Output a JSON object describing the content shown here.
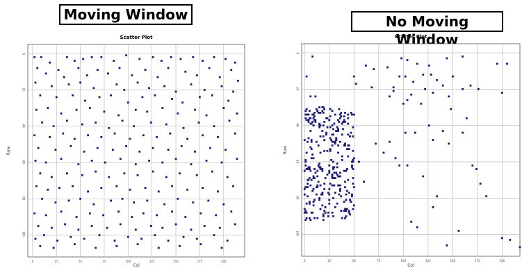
{
  "panels": [
    {
      "heading": "Moving Window",
      "chart_data": {
        "type": "scatter",
        "title": "Scatter Plot",
        "xlabel": "Col",
        "ylabel": "Row",
        "xlim": [
          -5,
          222
        ],
        "ylim": [
          -5,
          112
        ],
        "x_ticks": [
          0,
          25,
          50,
          75,
          100,
          125,
          150,
          175,
          200
        ],
        "y_ticks": [
          0,
          20,
          40,
          60,
          80,
          100
        ],
        "y_inverted": true,
        "grid": true,
        "point_color": "#1a1a6e",
        "points": [
          [
            2,
            2
          ],
          [
            9,
            2
          ],
          [
            18,
            5
          ],
          [
            36,
            2
          ],
          [
            44,
            4
          ],
          [
            53,
            3
          ],
          [
            62,
            2
          ],
          [
            72,
            2
          ],
          [
            85,
            4
          ],
          [
            98,
            1
          ],
          [
            112,
            3
          ],
          [
            126,
            2
          ],
          [
            135,
            4
          ],
          [
            145,
            2
          ],
          [
            155,
            3
          ],
          [
            168,
            2
          ],
          [
            178,
            4
          ],
          [
            190,
            2
          ],
          [
            202,
            3
          ],
          [
            212,
            5
          ],
          [
            5,
            8
          ],
          [
            14,
            11
          ],
          [
            27,
            9
          ],
          [
            33,
            13
          ],
          [
            48,
            8
          ],
          [
            57,
            12
          ],
          [
            68,
            9
          ],
          [
            79,
            11
          ],
          [
            91,
            8
          ],
          [
            104,
            12
          ],
          [
            118,
            9
          ],
          [
            131,
            13
          ],
          [
            142,
            8
          ],
          [
            160,
            10
          ],
          [
            172,
            12
          ],
          [
            185,
            8
          ],
          [
            196,
            13
          ],
          [
            208,
            9
          ],
          [
            215,
            15
          ],
          [
            3,
            16
          ],
          [
            20,
            18
          ],
          [
            38,
            17
          ],
          [
            50,
            16
          ],
          [
            64,
            19
          ],
          [
            88,
            17
          ],
          [
            96,
            20
          ],
          [
            110,
            16
          ],
          [
            122,
            19
          ],
          [
            138,
            18
          ],
          [
            150,
            21
          ],
          [
            166,
            17
          ],
          [
            180,
            20
          ],
          [
            198,
            18
          ],
          [
            210,
            21
          ],
          [
            8,
            23
          ],
          [
            25,
            24
          ],
          [
            42,
            23
          ],
          [
            55,
            26
          ],
          [
            70,
            24
          ],
          [
            82,
            23
          ],
          [
            100,
            27
          ],
          [
            115,
            24
          ],
          [
            128,
            23
          ],
          [
            146,
            25
          ],
          [
            157,
            27
          ],
          [
            175,
            24
          ],
          [
            188,
            23
          ],
          [
            205,
            26
          ],
          [
            4,
            31
          ],
          [
            16,
            30
          ],
          [
            30,
            33
          ],
          [
            46,
            31
          ],
          [
            60,
            30
          ],
          [
            75,
            32
          ],
          [
            90,
            34
          ],
          [
            108,
            31
          ],
          [
            120,
            32
          ],
          [
            136,
            30
          ],
          [
            152,
            33
          ],
          [
            170,
            31
          ],
          [
            182,
            34
          ],
          [
            200,
            30
          ],
          [
            214,
            33
          ],
          [
            10,
            38
          ],
          [
            22,
            40
          ],
          [
            36,
            37
          ],
          [
            52,
            39
          ],
          [
            66,
            38
          ],
          [
            80,
            41
          ],
          [
            94,
            37
          ],
          [
            106,
            40
          ],
          [
            124,
            38
          ],
          [
            140,
            39
          ],
          [
            158,
            41
          ],
          [
            174,
            38
          ],
          [
            190,
            40
          ],
          [
            206,
            37
          ],
          [
            2,
            45
          ],
          [
            18,
            46
          ],
          [
            32,
            44
          ],
          [
            44,
            47
          ],
          [
            58,
            45
          ],
          [
            72,
            46
          ],
          [
            86,
            44
          ],
          [
            102,
            47
          ],
          [
            116,
            45
          ],
          [
            130,
            46
          ],
          [
            144,
            44
          ],
          [
            162,
            47
          ],
          [
            178,
            45
          ],
          [
            194,
            46
          ],
          [
            212,
            44
          ],
          [
            6,
            52
          ],
          [
            24,
            53
          ],
          [
            40,
            51
          ],
          [
            54,
            54
          ],
          [
            68,
            52
          ],
          [
            84,
            53
          ],
          [
            98,
            51
          ],
          [
            112,
            54
          ],
          [
            126,
            52
          ],
          [
            142,
            53
          ],
          [
            156,
            51
          ],
          [
            170,
            54
          ],
          [
            186,
            52
          ],
          [
            202,
            53
          ],
          [
            3,
            59
          ],
          [
            14,
            60
          ],
          [
            30,
            58
          ],
          [
            48,
            61
          ],
          [
            62,
            59
          ],
          [
            76,
            60
          ],
          [
            92,
            58
          ],
          [
            108,
            61
          ],
          [
            122,
            59
          ],
          [
            136,
            60
          ],
          [
            150,
            58
          ],
          [
            166,
            61
          ],
          [
            182,
            59
          ],
          [
            198,
            60
          ],
          [
            214,
            58
          ],
          [
            8,
            66
          ],
          [
            20,
            68
          ],
          [
            36,
            66
          ],
          [
            52,
            67
          ],
          [
            66,
            65
          ],
          [
            80,
            68
          ],
          [
            96,
            66
          ],
          [
            110,
            67
          ],
          [
            126,
            65
          ],
          [
            140,
            68
          ],
          [
            154,
            66
          ],
          [
            172,
            67
          ],
          [
            188,
            65
          ],
          [
            204,
            68
          ],
          [
            4,
            73
          ],
          [
            16,
            75
          ],
          [
            28,
            74
          ],
          [
            42,
            73
          ],
          [
            58,
            76
          ],
          [
            72,
            74
          ],
          [
            88,
            73
          ],
          [
            102,
            75
          ],
          [
            118,
            74
          ],
          [
            132,
            76
          ],
          [
            146,
            73
          ],
          [
            162,
            75
          ],
          [
            178,
            74
          ],
          [
            194,
            76
          ],
          [
            210,
            73
          ],
          [
            10,
            80
          ],
          [
            24,
            82
          ],
          [
            38,
            81
          ],
          [
            50,
            80
          ],
          [
            64,
            83
          ],
          [
            82,
            81
          ],
          [
            94,
            80
          ],
          [
            106,
            82
          ],
          [
            120,
            81
          ],
          [
            138,
            83
          ],
          [
            152,
            80
          ],
          [
            168,
            82
          ],
          [
            184,
            81
          ],
          [
            200,
            83
          ],
          [
            2,
            88
          ],
          [
            14,
            89
          ],
          [
            30,
            87
          ],
          [
            46,
            90
          ],
          [
            60,
            88
          ],
          [
            74,
            89
          ],
          [
            90,
            87
          ],
          [
            104,
            90
          ],
          [
            116,
            88
          ],
          [
            130,
            89
          ],
          [
            146,
            87
          ],
          [
            160,
            90
          ],
          [
            176,
            88
          ],
          [
            192,
            89
          ],
          [
            208,
            87
          ],
          [
            6,
            95
          ],
          [
            20,
            96
          ],
          [
            34,
            94
          ],
          [
            48,
            97
          ],
          [
            62,
            95
          ],
          [
            78,
            96
          ],
          [
            92,
            94
          ],
          [
            108,
            97
          ],
          [
            124,
            95
          ],
          [
            136,
            96
          ],
          [
            150,
            94
          ],
          [
            166,
            97
          ],
          [
            180,
            95
          ],
          [
            196,
            96
          ],
          [
            212,
            94
          ],
          [
            3,
            102
          ],
          [
            12,
            100
          ],
          [
            26,
            103
          ],
          [
            40,
            101
          ],
          [
            54,
            102
          ],
          [
            70,
            100
          ],
          [
            86,
            103
          ],
          [
            100,
            101
          ],
          [
            114,
            102
          ],
          [
            128,
            100
          ],
          [
            142,
            103
          ],
          [
            158,
            101
          ],
          [
            172,
            102
          ],
          [
            190,
            100
          ],
          [
            204,
            103
          ],
          [
            8,
            106
          ],
          [
            22,
            107
          ],
          [
            44,
            105
          ],
          [
            66,
            107
          ],
          [
            88,
            106
          ],
          [
            110,
            105
          ],
          [
            132,
            107
          ],
          [
            154,
            106
          ],
          [
            176,
            105
          ],
          [
            198,
            107
          ]
        ]
      }
    },
    {
      "heading": "No Moving Window",
      "chart_data": {
        "type": "scatter",
        "title": "Scatter Plot",
        "xlabel": "Col",
        "ylabel": "Row",
        "xlim": [
          -3,
          218
        ],
        "ylim": [
          -5,
          112
        ],
        "x_ticks": [
          0,
          25,
          50,
          75,
          100,
          125,
          150,
          175,
          200
        ],
        "y_ticks": [
          0,
          20,
          40,
          60,
          80,
          100
        ],
        "y_inverted": true,
        "grid": true,
        "point_color": "#1a1a6e",
        "points": [
          [
            8,
            2
          ],
          [
            2,
            13
          ],
          [
            6,
            24
          ],
          [
            11,
            24
          ],
          [
            3,
            34
          ],
          [
            14,
            33
          ],
          [
            20,
            31
          ],
          [
            26,
            31
          ],
          [
            31,
            34
          ],
          [
            37,
            35
          ],
          [
            62,
            7
          ],
          [
            70,
            9
          ],
          [
            84,
            8
          ],
          [
            98,
            3
          ],
          [
            104,
            4
          ],
          [
            114,
            6
          ],
          [
            126,
            7
          ],
          [
            144,
            3
          ],
          [
            160,
            2
          ],
          [
            195,
            6
          ],
          [
            205,
            6
          ],
          [
            50,
            13
          ],
          [
            52,
            17
          ],
          [
            68,
            19
          ],
          [
            90,
            19
          ],
          [
            96,
            13
          ],
          [
            102,
            13
          ],
          [
            110,
            16
          ],
          [
            120,
            12
          ],
          [
            128,
            12
          ],
          [
            134,
            15
          ],
          [
            150,
            13
          ],
          [
            86,
            24
          ],
          [
            90,
            21
          ],
          [
            108,
            23
          ],
          [
            122,
            20
          ],
          [
            130,
            22
          ],
          [
            140,
            18
          ],
          [
            146,
            24
          ],
          [
            160,
            20
          ],
          [
            168,
            18
          ],
          [
            176,
            20
          ],
          [
            200,
            22
          ],
          [
            100,
            28
          ],
          [
            104,
            26
          ],
          [
            118,
            28
          ],
          [
            148,
            31
          ],
          [
            164,
            36
          ],
          [
            102,
            44
          ],
          [
            112,
            44
          ],
          [
            126,
            40
          ],
          [
            130,
            48
          ],
          [
            140,
            43
          ],
          [
            146,
            50
          ],
          [
            160,
            44
          ],
          [
            170,
            62
          ],
          [
            174,
            64
          ],
          [
            72,
            50
          ],
          [
            80,
            55
          ],
          [
            86,
            49
          ],
          [
            92,
            58
          ],
          [
            96,
            62
          ],
          [
            104,
            62
          ],
          [
            120,
            68
          ],
          [
            55,
            60
          ],
          [
            60,
            71
          ],
          [
            50,
            74
          ],
          [
            44,
            70
          ],
          [
            108,
            93
          ],
          [
            114,
            96
          ],
          [
            130,
            85
          ],
          [
            134,
            79
          ],
          [
            144,
            106
          ],
          [
            156,
            98
          ],
          [
            200,
            102
          ],
          [
            208,
            103
          ],
          [
            218,
            107
          ],
          [
            184,
            79
          ],
          [
            178,
            72
          ]
        ],
        "cluster": {
          "x_range": [
            0,
            50
          ],
          "y_range": [
            30,
            92
          ],
          "seed": 17,
          "count": 300
        }
      }
    }
  ]
}
